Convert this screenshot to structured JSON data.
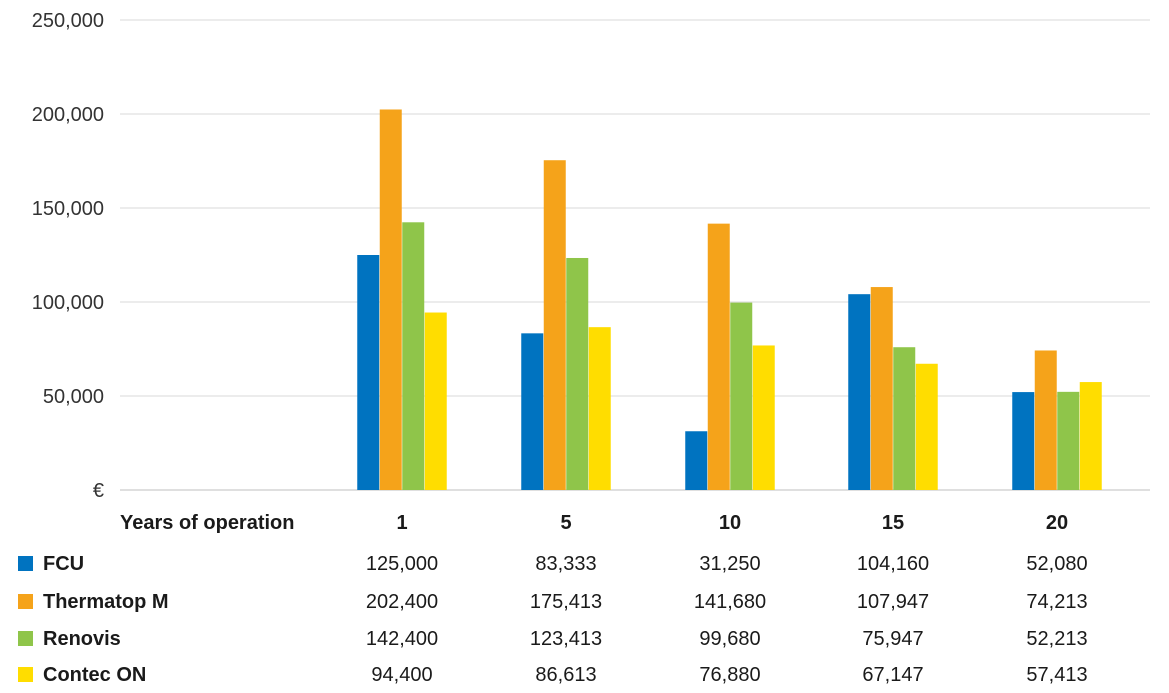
{
  "chart_data": {
    "type": "bar",
    "unit_label": "€",
    "categories_label": "Years of operation",
    "categories": [
      "1",
      "5",
      "10",
      "15",
      "20"
    ],
    "ylim": [
      0,
      250000
    ],
    "yticks": [
      0,
      50000,
      100000,
      150000,
      200000,
      250000
    ],
    "ytick_labels": [
      "€",
      "50,000",
      "100,000",
      "150,000",
      "200,000",
      "250,000"
    ],
    "grid": true,
    "legend": "table-bottom",
    "series": [
      {
        "name": "FCU",
        "color": "#0073c0",
        "values": [
          125000,
          83333,
          31250,
          104160,
          52080
        ],
        "labels": [
          "125,000",
          "83,333",
          "31,250",
          "104,160",
          "52,080"
        ]
      },
      {
        "name": "Thermatop M",
        "color": "#f5a31a",
        "values": [
          202400,
          175413,
          141680,
          107947,
          74213
        ],
        "labels": [
          "202,400",
          "175,413",
          "141,680",
          "107,947",
          "74,213"
        ]
      },
      {
        "name": "Renovis",
        "color": "#8fc54a",
        "values": [
          142400,
          123413,
          99680,
          75947,
          52213
        ],
        "labels": [
          "142,400",
          "123,413",
          "99,680",
          "75,947",
          "52,213"
        ]
      },
      {
        "name": "Contec ON",
        "color": "#ffdd00",
        "values": [
          94400,
          86613,
          76880,
          67147,
          57413
        ],
        "labels": [
          "94,400",
          "86,613",
          "76,880",
          "67,147",
          "57,413"
        ]
      }
    ]
  }
}
